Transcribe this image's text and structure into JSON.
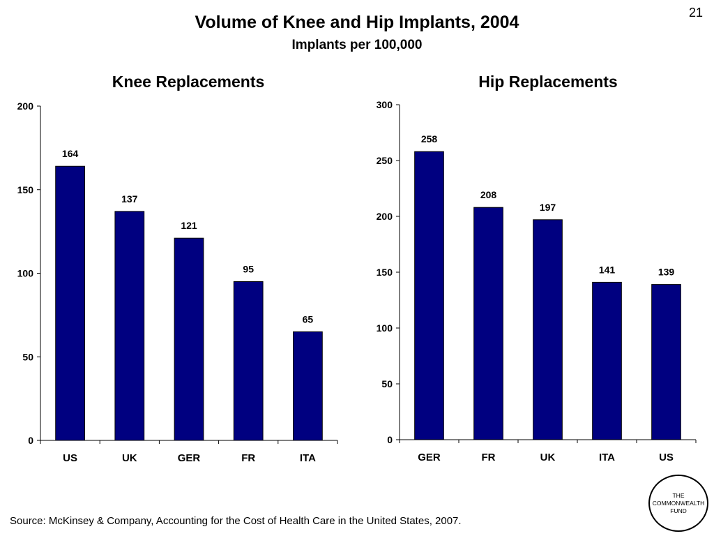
{
  "page_number": "21",
  "title": "Volume of Knee and Hip Implants, 2004",
  "subtitle": "Implants per 100,000",
  "source": "Source: McKinsey & Company, Accounting for the Cost of Health Care in the United States, 2007.",
  "logo": {
    "line1": "THE",
    "line2": "COMMONWEALTH",
    "line3": "FUND"
  },
  "colors": {
    "bar_fill": "#000080",
    "axis": "#000000"
  },
  "chart_data": [
    {
      "type": "bar",
      "title": "Knee Replacements",
      "categories": [
        "US",
        "UK",
        "GER",
        "FR",
        "ITA"
      ],
      "values": [
        164,
        137,
        121,
        95,
        65
      ],
      "yticks": [
        "0",
        "50",
        "100",
        "150",
        "200"
      ],
      "ylim": [
        0,
        200
      ],
      "xlabel": "",
      "ylabel": "",
      "grid": false
    },
    {
      "type": "bar",
      "title": "Hip Replacements",
      "categories": [
        "GER",
        "FR",
        "UK",
        "ITA",
        "US"
      ],
      "values": [
        258,
        208,
        197,
        141,
        139
      ],
      "yticks": [
        "0",
        "50",
        "100",
        "150",
        "200",
        "250",
        "300"
      ],
      "ylim": [
        0,
        300
      ],
      "xlabel": "",
      "ylabel": "",
      "grid": false
    }
  ]
}
